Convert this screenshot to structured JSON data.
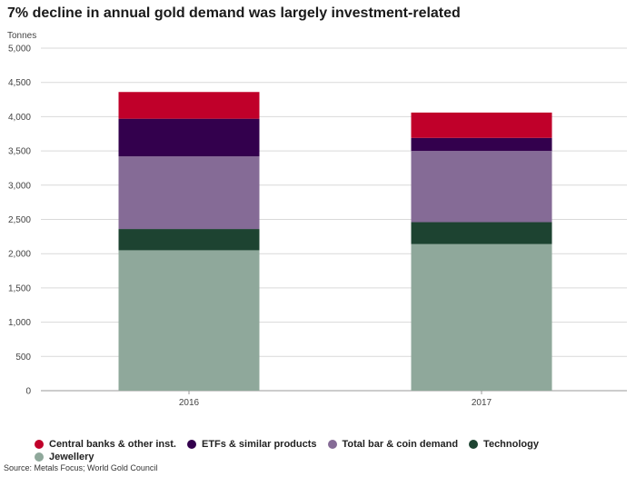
{
  "title": "7% decline in annual gold demand was largely investment-related",
  "unit_label": "Tonnes",
  "source": "Source: Metals Focus; World Gold Council",
  "chart_data": {
    "type": "bar",
    "stacked": true,
    "categories": [
      "2016",
      "2017"
    ],
    "ylim": [
      0,
      5000
    ],
    "yticks": [
      0,
      500,
      1000,
      1500,
      2000,
      2500,
      3000,
      3500,
      4000,
      4500,
      5000
    ],
    "ytick_labels": [
      "0",
      "500",
      "1,000",
      "1,500",
      "2,000",
      "2,500",
      "3,000",
      "3,500",
      "4,000",
      "4,500",
      "5,000"
    ],
    "grid": true,
    "legend_position": "bottom",
    "series": [
      {
        "name": "Jewellery",
        "color": "#8fa89b",
        "values": [
          2050,
          2140
        ]
      },
      {
        "name": "Technology",
        "color": "#1d4331",
        "values": [
          310,
          320
        ]
      },
      {
        "name": "Total bar & coin demand",
        "color": "#856b96",
        "values": [
          1060,
          1040
        ]
      },
      {
        "name": "ETFs & similar products",
        "color": "#33004d",
        "values": [
          550,
          190
        ]
      },
      {
        "name": "Central banks & other inst.",
        "color": "#c0002a",
        "values": [
          390,
          370
        ]
      }
    ],
    "legend_order": [
      "Central banks & other inst.",
      "ETFs & similar products",
      "Total bar & coin demand",
      "Technology",
      "Jewellery"
    ]
  }
}
